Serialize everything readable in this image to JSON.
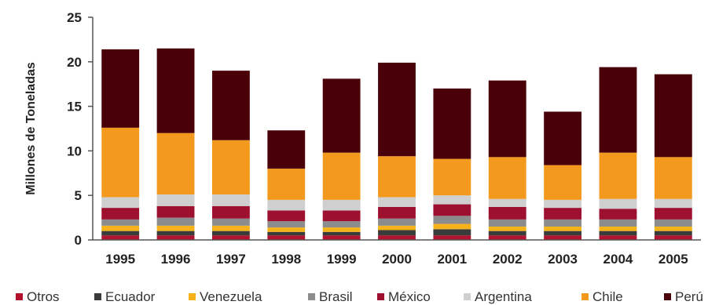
{
  "chart_data": {
    "type": "bar",
    "stacked": true,
    "title": "",
    "xlabel": "",
    "ylabel": "Millones de Toneladas",
    "ylim": [
      0,
      25
    ],
    "yticks": [
      0,
      5,
      10,
      15,
      20,
      25
    ],
    "grid": false,
    "legend_position": "bottom",
    "categories": [
      "1995",
      "1996",
      "1997",
      "1998",
      "1999",
      "2000",
      "2001",
      "2002",
      "2003",
      "2004",
      "2005"
    ],
    "series": [
      {
        "name": "Otros",
        "color": "#b3122e",
        "values": [
          0.5,
          0.5,
          0.5,
          0.5,
          0.5,
          0.5,
          0.5,
          0.5,
          0.5,
          0.5,
          0.5
        ]
      },
      {
        "name": "Ecuador",
        "color": "#3b3b3b",
        "values": [
          0.5,
          0.5,
          0.5,
          0.4,
          0.4,
          0.6,
          0.7,
          0.5,
          0.5,
          0.5,
          0.5
        ]
      },
      {
        "name": "Venezuela",
        "color": "#f5b21a",
        "values": [
          0.6,
          0.6,
          0.6,
          0.5,
          0.5,
          0.5,
          0.6,
          0.5,
          0.5,
          0.5,
          0.5
        ]
      },
      {
        "name": "Brasil",
        "color": "#8c8c8c",
        "values": [
          0.7,
          0.9,
          0.8,
          0.7,
          0.7,
          0.8,
          0.9,
          0.8,
          0.8,
          0.8,
          0.8
        ]
      },
      {
        "name": "México",
        "color": "#9e1030",
        "values": [
          1.3,
          1.3,
          1.4,
          1.2,
          1.2,
          1.3,
          1.3,
          1.4,
          1.3,
          1.2,
          1.3
        ]
      },
      {
        "name": "Argentina",
        "color": "#cfcfcf",
        "values": [
          1.2,
          1.3,
          1.3,
          1.2,
          1.2,
          1.1,
          1.0,
          0.9,
          0.9,
          1.1,
          1.0
        ]
      },
      {
        "name": "Chile",
        "color": "#f39a1e",
        "values": [
          7.8,
          6.9,
          6.1,
          3.5,
          5.3,
          4.6,
          4.1,
          4.7,
          3.9,
          5.2,
          4.7
        ]
      },
      {
        "name": "Perú",
        "color": "#4a0008",
        "values": [
          8.8,
          9.5,
          7.8,
          4.3,
          8.3,
          10.5,
          7.9,
          8.6,
          6.0,
          9.6,
          9.3
        ]
      }
    ]
  }
}
